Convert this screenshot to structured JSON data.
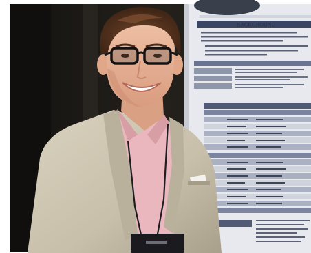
{
  "photo": {
    "description_role": "portrait-photo",
    "colors": {
      "frame": "#ffffff",
      "backdrop_dark": "#191713",
      "backdrop_panel": "#2a2722",
      "poster_paper": "#e7e9ee",
      "poster_band": "#3a4563",
      "poster_table": "#9aa3b8",
      "blazer": "#cfc8b4",
      "shirt": "#e9b7bd",
      "skin": "#e8b59a",
      "hair": "#5a3420",
      "badge": "#1b1b1f"
    },
    "poster": {
      "heading": "BACKGROUND"
    }
  }
}
